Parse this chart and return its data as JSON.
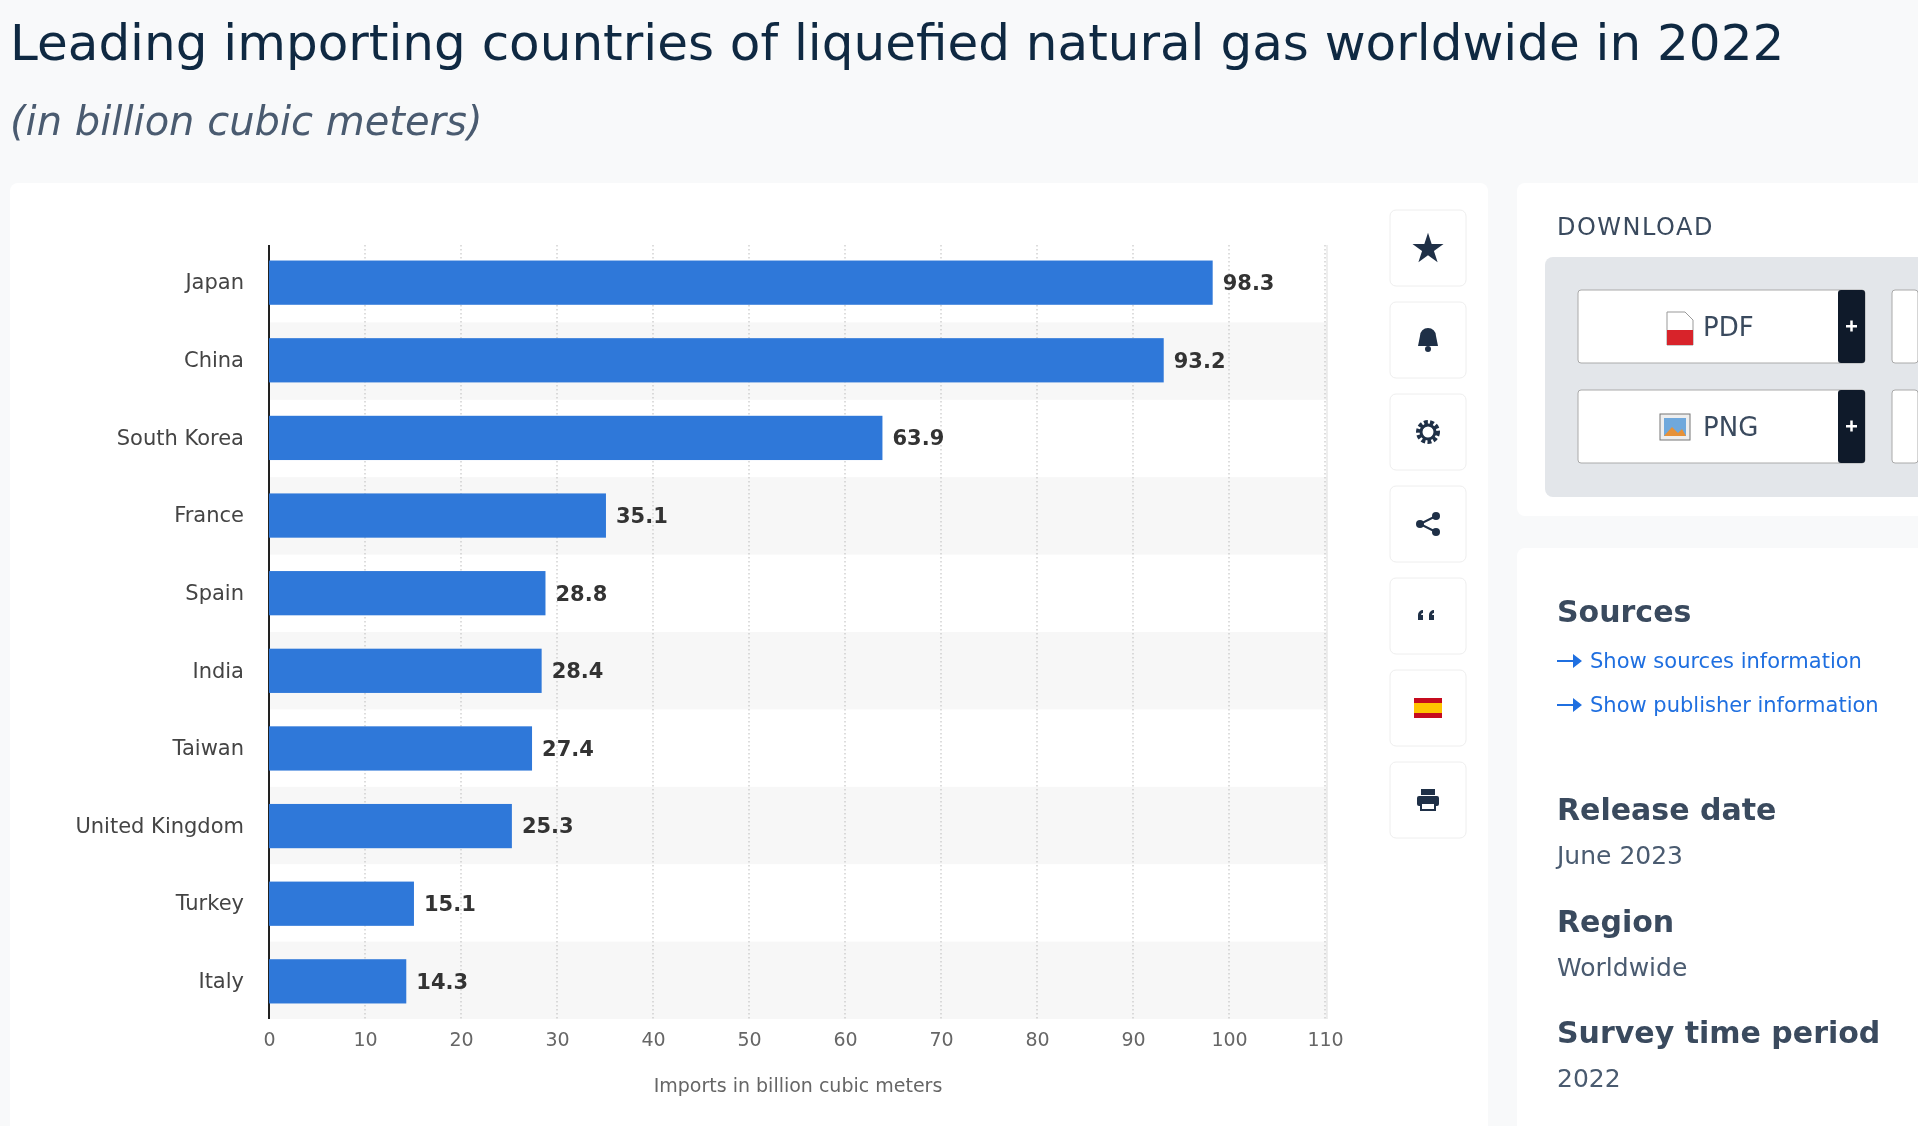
{
  "chart_data": {
    "type": "bar",
    "orientation": "horizontal",
    "title": "Leading importing countries of liquefied natural gas worldwide in 2022",
    "subtitle": "(in billion cubic meters)",
    "xlabel": "Imports in billion cubic meters",
    "categories": [
      "Japan",
      "China",
      "South Korea",
      "France",
      "Spain",
      "India",
      "Taiwan",
      "United Kingdom",
      "Turkey",
      "Italy"
    ],
    "values": [
      98.3,
      93.2,
      63.9,
      35.1,
      28.8,
      28.4,
      27.4,
      25.3,
      15.1,
      14.3
    ],
    "color": "#2f78d9",
    "xlim": [
      0,
      110
    ],
    "xticks": [
      0,
      10,
      20,
      30,
      40,
      50,
      60,
      70,
      80,
      90,
      100,
      110
    ],
    "grid": "x",
    "data_labels": true,
    "annotations": [
      "DOWNLOAD",
      "PDF",
      "PNG",
      "Sources",
      "Show sources information",
      "Show publisher information",
      "Release date",
      "June 2023",
      "Region",
      "Worldwide",
      "Survey time period",
      "2022"
    ]
  }
}
